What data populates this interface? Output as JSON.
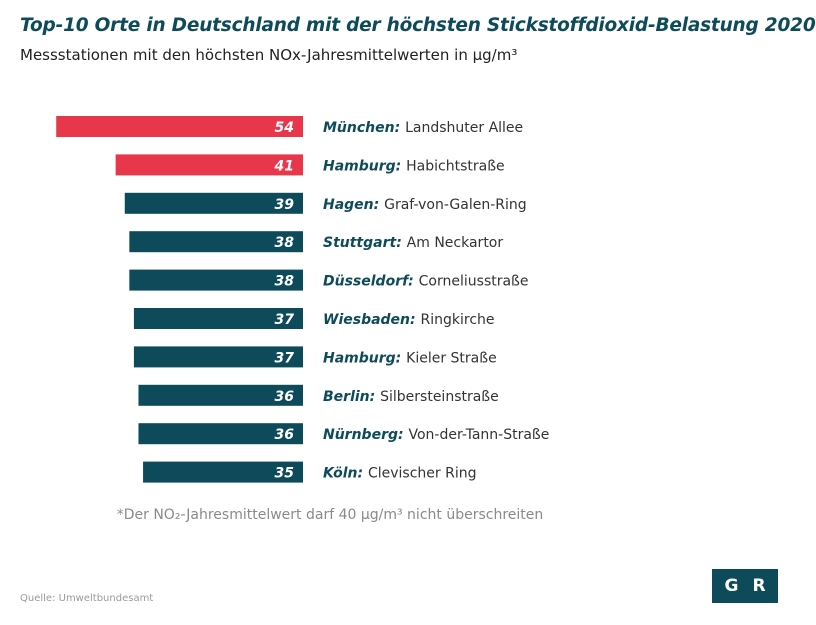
{
  "title": "Top-10 Orte in Deutschland mit der höchsten Stickstoffdioxid-Belastung 2020",
  "subtitle": "Messstationen mit den höchsten NOx-Jahresmittelwerten in µg/m³",
  "note": "*Der NO₂-Jahresmittelwert darf 40 µg/m³ nicht überschreiten",
  "source": "Quelle: Umweltbundesamt",
  "logo": {
    "left": "G",
    "right": "R"
  },
  "colors": {
    "above_limit": "#e8374a",
    "below_limit": "#0e4b5a",
    "title": "#0e4b5a"
  },
  "chart_data": {
    "type": "bar",
    "orientation": "horizontal",
    "limit": 40,
    "categories": [
      {
        "city": "München:",
        "station": "Landshuter Allee"
      },
      {
        "city": "Hamburg:",
        "station": "Habichtstraße"
      },
      {
        "city": "Hagen:",
        "station": "Graf-von-Galen-Ring"
      },
      {
        "city": "Stuttgart:",
        "station": "Am Neckartor"
      },
      {
        "city": "Düsseldorf:",
        "station": "Corneliusstraße"
      },
      {
        "city": "Wiesbaden:",
        "station": "Ringkirche"
      },
      {
        "city": "Hamburg:",
        "station": "Kieler Straße"
      },
      {
        "city": "Berlin:",
        "station": "Silbersteinstraße"
      },
      {
        "city": "Nürnberg:",
        "station": "Von-der-Tann-Straße"
      },
      {
        "city": "Köln:",
        "station": "Clevischer Ring"
      }
    ],
    "values": [
      54,
      41,
      39,
      38,
      38,
      37,
      37,
      36,
      36,
      35
    ],
    "value_labels": [
      "54",
      "41",
      "39",
      "38",
      "38",
      "37",
      "37",
      "36",
      "36",
      "35"
    ]
  }
}
